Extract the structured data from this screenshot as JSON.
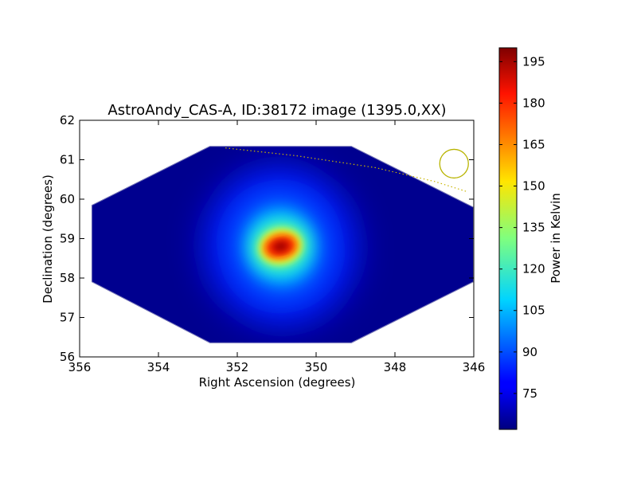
{
  "chart_data": {
    "type": "heatmap",
    "title": "AstroAndy_CAS-A, ID:38172 image (1395.0,XX)",
    "xlabel": "Right Ascension (degrees)",
    "ylabel": "Declination (degrees)",
    "xlim": [
      356,
      346
    ],
    "ylim": [
      56,
      62
    ],
    "xticks": [
      "356",
      "354",
      "352",
      "350",
      "348",
      "346"
    ],
    "yticks": [
      "56",
      "57",
      "58",
      "59",
      "60",
      "61",
      "62"
    ],
    "colorbar": {
      "label": "Power in Kelvin",
      "range": [
        62,
        200
      ],
      "ticks": [
        "75",
        "90",
        "105",
        "120",
        "135",
        "150",
        "165",
        "180",
        "195"
      ],
      "colormap": "jet"
    },
    "source": {
      "peak_ra": 350.9,
      "peak_dec": 58.8,
      "peak_value": 200,
      "background_value": 62
    },
    "footprint": {
      "vertices_ra_dec": [
        [
          352.7,
          61.35
        ],
        [
          349.1,
          61.35
        ],
        [
          346,
          59.8
        ],
        [
          346,
          57.9
        ],
        [
          349.1,
          56.35
        ],
        [
          352.7,
          56.35
        ],
        [
          355.7,
          57.9
        ],
        [
          355.7,
          59.85
        ]
      ]
    },
    "horizon_curve": {
      "color": "#c8b400",
      "points_ra_dec": [
        [
          352.3,
          61.3
        ],
        [
          350.5,
          61.1
        ],
        [
          348.5,
          60.8
        ],
        [
          347.0,
          60.45
        ],
        [
          346.2,
          60.2
        ]
      ]
    },
    "marker_circle": {
      "ra": 346.5,
      "dec": 60.9,
      "color": "#b8b400"
    }
  }
}
